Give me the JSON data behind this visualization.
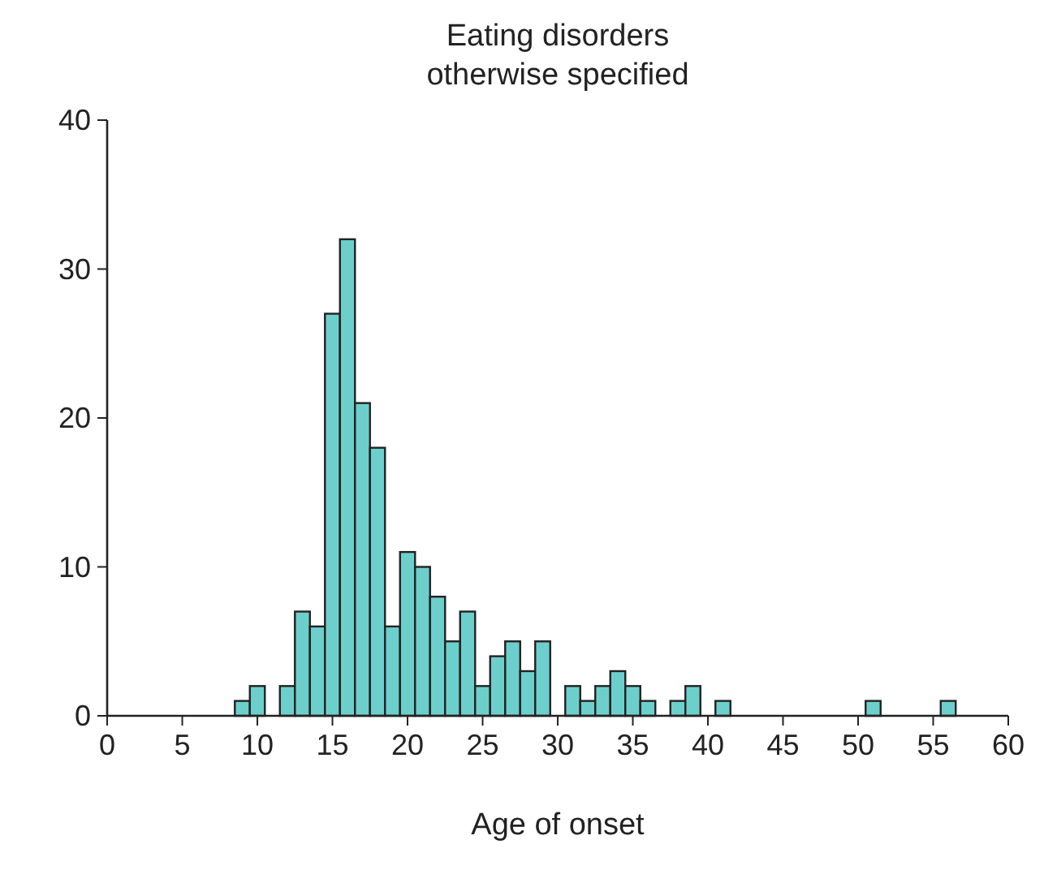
{
  "chart_data": {
    "type": "histogram",
    "title": "Eating disorders\notherwise specified",
    "xlabel": "Age of onset",
    "color": "#6dcfcb",
    "bins": [
      8.5,
      9.5,
      10.5,
      11.5,
      12.5,
      13.5,
      14.5,
      15.5,
      16.5,
      17.5,
      18.5,
      19.5,
      20.5,
      21.5,
      22.5,
      23.5,
      24.5,
      25.5,
      26.5,
      27.5,
      28.5,
      29.5,
      30.5,
      31.5,
      32.5,
      33.5,
      34.5,
      35.5,
      36.5,
      37.5,
      38.5,
      39.5,
      40.5,
      41.5,
      42.5,
      43.5,
      44.5,
      45.5,
      46.5,
      47.5,
      48.5,
      49.5,
      50.5,
      51.5,
      52.5,
      53.5,
      54.5,
      55.5,
      56.5
    ],
    "values": [
      1,
      2,
      0,
      2,
      7,
      6,
      27,
      32,
      21,
      18,
      6,
      11,
      10,
      8,
      5,
      7,
      2,
      4,
      5,
      3,
      5,
      0,
      2,
      1,
      2,
      3,
      2,
      1,
      0,
      1,
      2,
      0,
      1,
      0,
      0,
      0,
      0,
      0,
      0,
      0,
      0,
      0,
      1,
      0,
      0,
      0,
      0,
      1
    ],
    "xlim": [
      0,
      60
    ],
    "xticks": [
      0,
      5,
      10,
      15,
      20,
      25,
      30,
      35,
      40,
      45,
      50,
      55,
      60
    ],
    "ylim": [
      0,
      40
    ],
    "yticks": [
      0,
      10,
      20,
      30,
      40
    ],
    "grid": false
  }
}
